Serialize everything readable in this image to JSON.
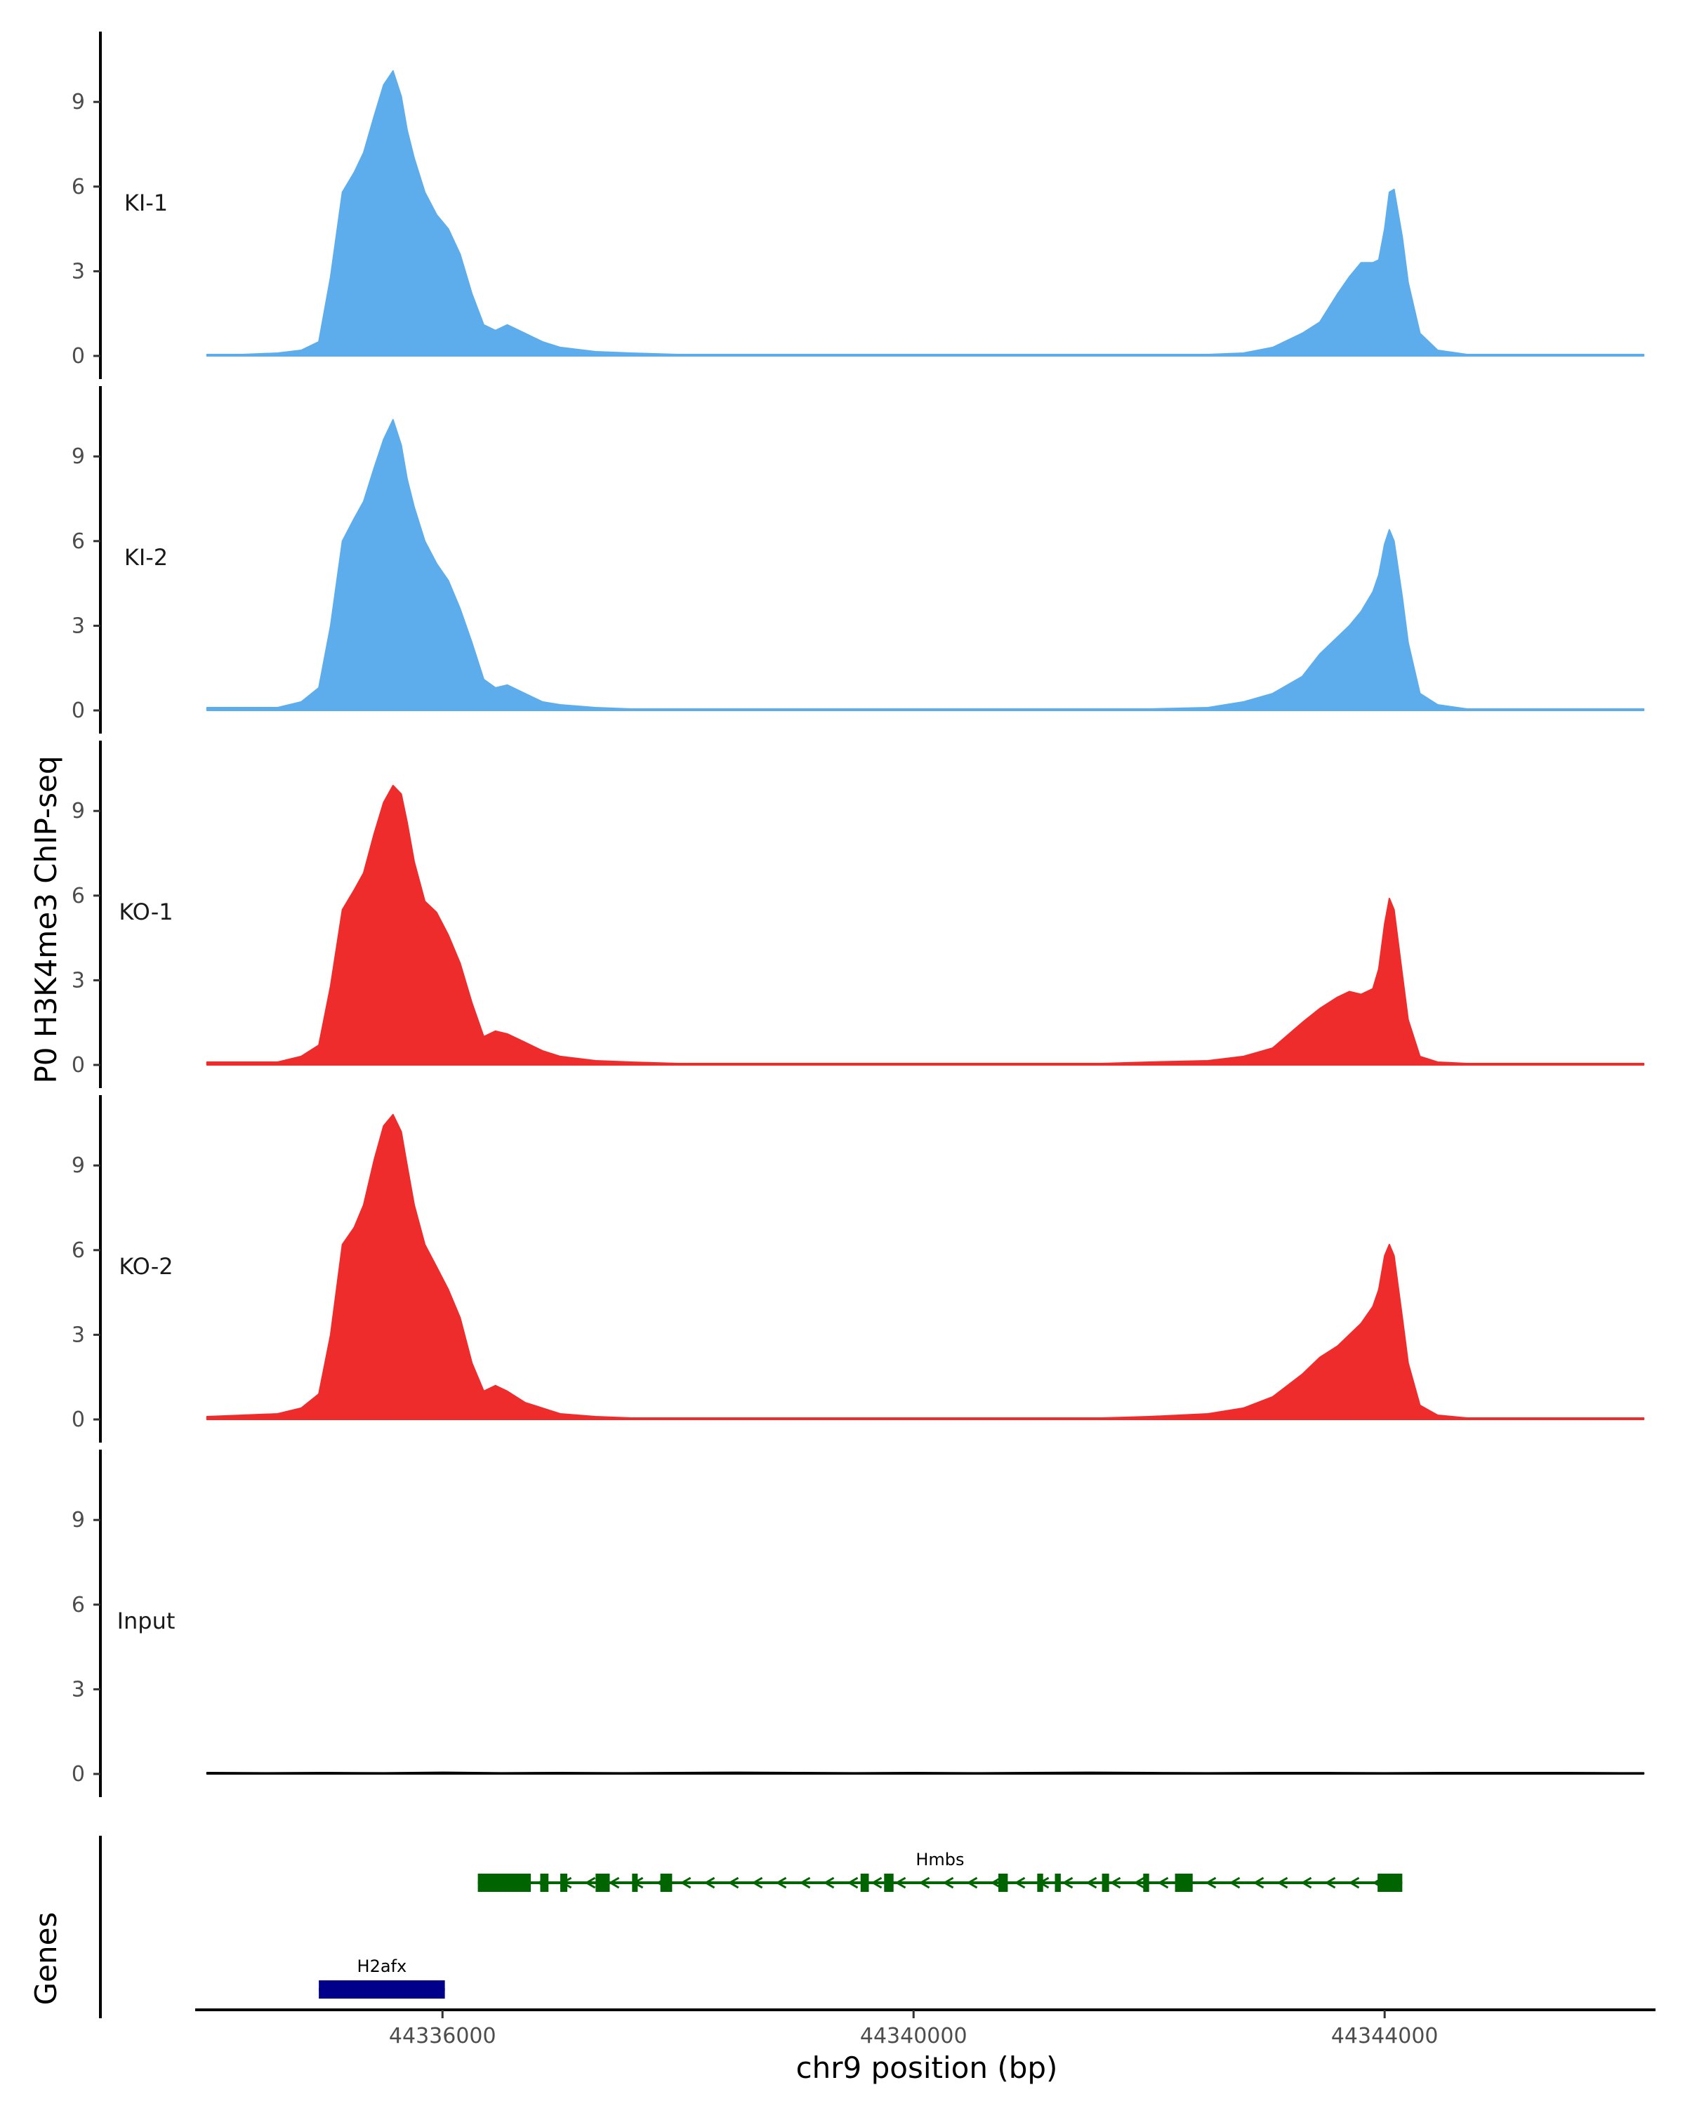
{
  "chart_data": {
    "type": "area",
    "y_axis_title": "P0 H3K4me3 ChIP-seq",
    "x_axis_title": "chr9 position (bp)",
    "genes_axis_title": "Genes",
    "xlim": [
      44333900,
      44346300
    ],
    "ylim": [
      0,
      11.8
    ],
    "y_ticks": [
      0,
      3,
      6,
      9
    ],
    "x_ticks": [
      {
        "value": 44336000,
        "label": "44336000"
      },
      {
        "value": 44340000,
        "label": "44340000"
      },
      {
        "value": 44344000,
        "label": "44344000"
      }
    ],
    "colors": {
      "KI": "#5DADEC",
      "KO": "#EE2C2C",
      "Input": "#000000",
      "Hmbs": "#006400",
      "H2afx": "#00008B",
      "axis": "#000000"
    },
    "tracks": [
      {
        "name": "KI-1",
        "label": "KI-1",
        "color": "#5DADEC",
        "x": [
          44334000,
          44334300,
          44334600,
          44334800,
          44334950,
          44335050,
          44335150,
          44335250,
          44335330,
          44335420,
          44335500,
          44335580,
          44335650,
          44335700,
          44335760,
          44335850,
          44335950,
          44336050,
          44336150,
          44336250,
          44336350,
          44336450,
          44336550,
          44336700,
          44336850,
          44337000,
          44337300,
          44337600,
          44338000,
          44338500,
          44339000,
          44339500,
          44340000,
          44340600,
          44341000,
          44341300,
          44341600,
          44342000,
          44342500,
          44342800,
          44343050,
          44343300,
          44343450,
          44343600,
          44343700,
          44343800,
          44343900,
          44343950,
          44344000,
          44344040,
          44344080,
          44344150,
          44344200,
          44344300,
          44344450,
          44344700,
          44345000,
          44345500,
          44346000,
          44346200
        ],
        "y": [
          0.05,
          0.05,
          0.1,
          0.2,
          0.5,
          2.8,
          5.8,
          6.5,
          7.2,
          8.5,
          9.6,
          10.1,
          9.2,
          8.0,
          7.0,
          5.8,
          5.0,
          4.5,
          3.6,
          2.2,
          1.1,
          0.9,
          1.1,
          0.8,
          0.5,
          0.3,
          0.15,
          0.1,
          0.05,
          0.05,
          0.05,
          0.05,
          0.05,
          0.05,
          0.05,
          0.05,
          0.05,
          0.05,
          0.05,
          0.1,
          0.3,
          0.8,
          1.2,
          2.2,
          2.8,
          3.3,
          3.3,
          3.4,
          4.5,
          5.8,
          5.9,
          4.2,
          2.6,
          0.8,
          0.2,
          0.05,
          0.05,
          0.05,
          0.05,
          0.05
        ]
      },
      {
        "name": "KI-2",
        "label": "KI-2",
        "color": "#5DADEC",
        "x": [
          44334000,
          44334300,
          44334600,
          44334800,
          44334950,
          44335050,
          44335150,
          44335250,
          44335330,
          44335420,
          44335500,
          44335580,
          44335650,
          44335700,
          44335760,
          44335850,
          44335950,
          44336050,
          44336150,
          44336250,
          44336350,
          44336450,
          44336550,
          44336700,
          44336850,
          44337000,
          44337300,
          44337600,
          44338000,
          44338500,
          44339000,
          44339500,
          44340000,
          44340600,
          44341000,
          44341300,
          44341600,
          44342000,
          44342500,
          44342800,
          44343050,
          44343300,
          44343450,
          44343600,
          44343700,
          44343800,
          44343900,
          44343950,
          44344000,
          44344040,
          44344080,
          44344150,
          44344200,
          44344300,
          44344450,
          44344700,
          44345000,
          44345500,
          44346000,
          44346200
        ],
        "y": [
          0.1,
          0.1,
          0.1,
          0.3,
          0.8,
          3.0,
          6.0,
          6.8,
          7.4,
          8.6,
          9.6,
          10.3,
          9.4,
          8.2,
          7.2,
          6.0,
          5.2,
          4.6,
          3.6,
          2.4,
          1.1,
          0.8,
          0.9,
          0.6,
          0.3,
          0.2,
          0.1,
          0.05,
          0.05,
          0.05,
          0.05,
          0.05,
          0.05,
          0.05,
          0.05,
          0.05,
          0.05,
          0.05,
          0.1,
          0.3,
          0.6,
          1.2,
          2.0,
          2.6,
          3.0,
          3.5,
          4.2,
          4.8,
          5.9,
          6.4,
          6.0,
          4.0,
          2.4,
          0.6,
          0.2,
          0.05,
          0.05,
          0.05,
          0.05,
          0.05
        ]
      },
      {
        "name": "KO-1",
        "label": "KO-1",
        "color": "#EE2C2C",
        "x": [
          44334000,
          44334300,
          44334600,
          44334800,
          44334950,
          44335050,
          44335150,
          44335250,
          44335330,
          44335420,
          44335500,
          44335580,
          44335650,
          44335700,
          44335760,
          44335850,
          44335950,
          44336050,
          44336150,
          44336250,
          44336350,
          44336450,
          44336550,
          44336700,
          44336850,
          44337000,
          44337300,
          44337600,
          44338000,
          44338500,
          44339000,
          44339500,
          44340000,
          44340600,
          44341000,
          44341300,
          44341600,
          44342000,
          44342500,
          44342800,
          44343050,
          44343300,
          44343450,
          44343600,
          44343700,
          44343800,
          44343900,
          44343950,
          44344000,
          44344040,
          44344080,
          44344150,
          44344200,
          44344300,
          44344450,
          44344700,
          44345000,
          44345500,
          44346000,
          44346200
        ],
        "y": [
          0.1,
          0.1,
          0.1,
          0.3,
          0.7,
          2.8,
          5.5,
          6.2,
          6.8,
          8.2,
          9.3,
          9.9,
          9.6,
          8.6,
          7.2,
          5.8,
          5.4,
          4.6,
          3.6,
          2.2,
          1.0,
          1.2,
          1.1,
          0.8,
          0.5,
          0.3,
          0.15,
          0.1,
          0.05,
          0.05,
          0.05,
          0.05,
          0.05,
          0.05,
          0.05,
          0.05,
          0.05,
          0.1,
          0.15,
          0.3,
          0.6,
          1.5,
          2.0,
          2.4,
          2.6,
          2.5,
          2.7,
          3.4,
          5.0,
          5.9,
          5.5,
          3.2,
          1.6,
          0.3,
          0.1,
          0.05,
          0.05,
          0.05,
          0.05,
          0.05
        ]
      },
      {
        "name": "KO-2",
        "label": "KO-2",
        "color": "#EE2C2C",
        "x": [
          44334000,
          44334300,
          44334600,
          44334800,
          44334950,
          44335050,
          44335150,
          44335250,
          44335330,
          44335420,
          44335500,
          44335580,
          44335650,
          44335700,
          44335760,
          44335850,
          44335950,
          44336050,
          44336150,
          44336250,
          44336350,
          44336450,
          44336550,
          44336700,
          44336850,
          44337000,
          44337300,
          44337600,
          44338000,
          44338500,
          44339000,
          44339500,
          44340000,
          44340600,
          44341000,
          44341300,
          44341600,
          44342000,
          44342500,
          44342800,
          44343050,
          44343300,
          44343450,
          44343600,
          44343700,
          44343800,
          44343900,
          44343950,
          44344000,
          44344040,
          44344080,
          44344150,
          44344200,
          44344300,
          44344450,
          44344700,
          44345000,
          44345500,
          44346000,
          44346200
        ],
        "y": [
          0.1,
          0.15,
          0.2,
          0.4,
          0.9,
          3.0,
          6.2,
          6.8,
          7.6,
          9.2,
          10.4,
          10.8,
          10.2,
          9.0,
          7.6,
          6.2,
          5.4,
          4.6,
          3.6,
          2.0,
          1.0,
          1.2,
          1.0,
          0.6,
          0.4,
          0.2,
          0.1,
          0.05,
          0.05,
          0.05,
          0.05,
          0.05,
          0.05,
          0.05,
          0.05,
          0.05,
          0.05,
          0.1,
          0.2,
          0.4,
          0.8,
          1.6,
          2.2,
          2.6,
          3.0,
          3.4,
          4.0,
          4.6,
          5.8,
          6.2,
          5.8,
          3.6,
          2.0,
          0.5,
          0.15,
          0.05,
          0.05,
          0.05,
          0.05,
          0.05
        ]
      },
      {
        "name": "Input",
        "label": "Input",
        "color": "#000000",
        "x": [
          44334000,
          44334500,
          44335000,
          44335500,
          44336000,
          44336500,
          44337000,
          44337500,
          44338000,
          44338500,
          44339000,
          44339500,
          44340000,
          44340500,
          44341000,
          44341500,
          44342000,
          44342500,
          44343000,
          44343500,
          44344000,
          44344500,
          44345000,
          44345500,
          44346000,
          44346200
        ],
        "y": [
          0.05,
          0.04,
          0.05,
          0.04,
          0.06,
          0.04,
          0.05,
          0.04,
          0.05,
          0.06,
          0.05,
          0.04,
          0.05,
          0.04,
          0.05,
          0.06,
          0.05,
          0.04,
          0.05,
          0.05,
          0.04,
          0.05,
          0.05,
          0.05,
          0.04,
          0.04
        ]
      }
    ],
    "gene_track": {
      "label": "Genes",
      "genes": [
        {
          "name": "Hmbs",
          "label": "Hmbs",
          "strand": "-",
          "color": "#006400",
          "start": 44336300,
          "end": 44344150,
          "exons": [
            {
              "start": 44336300,
              "end": 44336750
            },
            {
              "start": 44336830,
              "end": 44336900
            },
            {
              "start": 44337000,
              "end": 44337060
            },
            {
              "start": 44337300,
              "end": 44337420
            },
            {
              "start": 44337610,
              "end": 44337640
            },
            {
              "start": 44337850,
              "end": 44337950
            },
            {
              "start": 44339550,
              "end": 44339620
            },
            {
              "start": 44339750,
              "end": 44339830
            },
            {
              "start": 44340720,
              "end": 44340800
            },
            {
              "start": 44341050,
              "end": 44341100
            },
            {
              "start": 44341200,
              "end": 44341250
            },
            {
              "start": 44341600,
              "end": 44341660
            },
            {
              "start": 44341950,
              "end": 44342000
            },
            {
              "start": 44342220,
              "end": 44342370
            },
            {
              "start": 44343940,
              "end": 44344150
            }
          ]
        },
        {
          "name": "H2afx",
          "label": "H2afx",
          "strand": "+",
          "color": "#00008B",
          "start": 44334950,
          "end": 44336020,
          "exons": [
            {
              "start": 44334950,
              "end": 44336020
            }
          ]
        }
      ]
    }
  }
}
